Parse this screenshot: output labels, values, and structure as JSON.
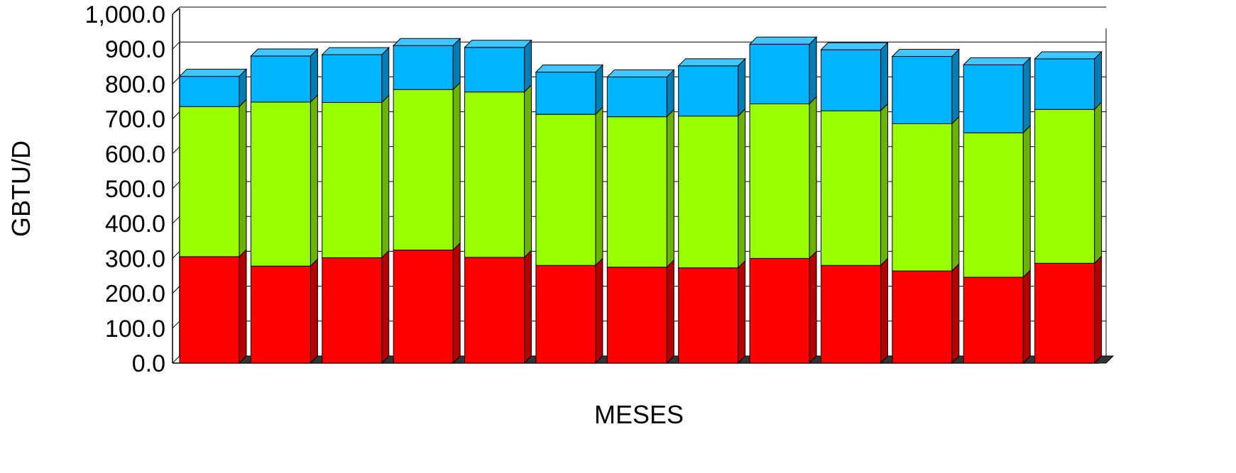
{
  "chart_data": {
    "type": "bar",
    "stacked": true,
    "three_d": true,
    "categories": [
      "",
      "",
      "",
      "",
      "",
      "",
      "",
      "",
      "",
      "",
      "",
      "",
      ""
    ],
    "series": [
      {
        "color": "#FF0000",
        "values": [
          305,
          278,
          302,
          324,
          303,
          280,
          275,
          273,
          300,
          280,
          264,
          246,
          286
        ]
      },
      {
        "color": "#99FF00",
        "values": [
          430,
          470,
          445,
          460,
          474,
          433,
          431,
          435,
          443,
          443,
          422,
          414,
          441
        ]
      },
      {
        "color": "#00B4FF",
        "values": [
          87,
          132,
          137,
          126,
          128,
          121,
          114,
          144,
          171,
          175,
          193,
          195,
          145
        ]
      }
    ],
    "xlabel": "MESES",
    "ylabel": "GBTU/D",
    "ylim": [
      0,
      1000
    ],
    "yticks": [
      "0.0",
      "100.0",
      "200.0",
      "300.0",
      "400.0",
      "500.0",
      "600.0",
      "700.0",
      "800.0",
      "900.0",
      "1,000.0"
    ],
    "grid": true,
    "legend": "none"
  }
}
